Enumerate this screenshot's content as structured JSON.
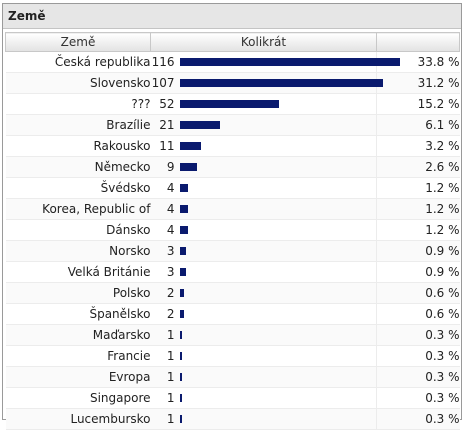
{
  "panel": {
    "title": "Země"
  },
  "columns": {
    "country": "Země",
    "hits": "Kolikrát",
    "percent": ""
  },
  "rows": [
    {
      "country": "Česká republika",
      "count": 116,
      "percent": "33.8 %",
      "share": 0.338
    },
    {
      "country": "Slovensko",
      "count": 107,
      "percent": "31.2 %",
      "share": 0.312
    },
    {
      "country": "???",
      "count": 52,
      "percent": "15.2 %",
      "share": 0.152
    },
    {
      "country": "Brazílie",
      "count": 21,
      "percent": "6.1 %",
      "share": 0.061
    },
    {
      "country": "Rakousko",
      "count": 11,
      "percent": "3.2 %",
      "share": 0.032
    },
    {
      "country": "Německo",
      "count": 9,
      "percent": "2.6 %",
      "share": 0.026
    },
    {
      "country": "Švédsko",
      "count": 4,
      "percent": "1.2 %",
      "share": 0.012
    },
    {
      "country": "Korea, Republic of",
      "count": 4,
      "percent": "1.2 %",
      "share": 0.012
    },
    {
      "country": "Dánsko",
      "count": 4,
      "percent": "1.2 %",
      "share": 0.012
    },
    {
      "country": "Norsko",
      "count": 3,
      "percent": "0.9 %",
      "share": 0.009
    },
    {
      "country": "Velká Británie",
      "count": 3,
      "percent": "0.9 %",
      "share": 0.009
    },
    {
      "country": "Polsko",
      "count": 2,
      "percent": "0.6 %",
      "share": 0.006
    },
    {
      "country": "Španělsko",
      "count": 2,
      "percent": "0.6 %",
      "share": 0.006
    },
    {
      "country": "Maďarsko",
      "count": 1,
      "percent": "0.3 %",
      "share": 0.003
    },
    {
      "country": "Francie",
      "count": 1,
      "percent": "0.3 %",
      "share": 0.003
    },
    {
      "country": "Evropa",
      "count": 1,
      "percent": "0.3 %",
      "share": 0.003
    },
    {
      "country": "Singapore",
      "count": 1,
      "percent": "0.3 %",
      "share": 0.003
    },
    {
      "country": "Lucembursko",
      "count": 1,
      "percent": "0.3 %",
      "share": 0.003
    }
  ],
  "colors": {
    "bar": "#0a1a6e",
    "header_bg": "#e6e6e6",
    "border": "#9a9a9a"
  }
}
